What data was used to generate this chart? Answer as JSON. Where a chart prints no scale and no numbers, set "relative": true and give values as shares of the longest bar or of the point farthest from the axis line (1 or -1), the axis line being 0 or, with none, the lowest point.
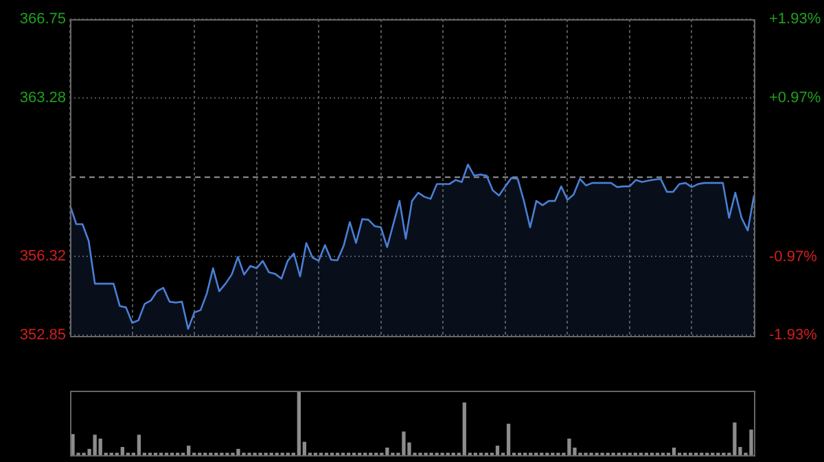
{
  "chart_data": [
    {
      "type": "area",
      "categories": [
        null,
        null,
        null,
        null,
        null,
        null,
        null,
        null,
        null,
        null,
        null,
        null,
        null,
        null,
        null,
        null,
        null,
        null,
        null,
        null,
        null,
        null,
        null,
        null,
        null,
        null,
        null,
        null,
        null,
        null,
        null,
        null,
        null,
        null,
        null,
        null,
        null,
        null,
        null,
        null,
        null,
        null,
        null,
        null,
        null,
        null,
        null,
        null,
        null,
        null,
        null,
        null,
        null,
        null,
        null,
        null,
        null,
        null,
        null,
        null,
        null,
        null,
        null,
        null,
        null,
        null,
        null,
        null,
        null,
        null,
        null,
        null,
        null,
        null,
        null,
        null,
        null,
        null,
        null,
        null,
        null,
        null,
        null,
        null,
        null,
        null,
        null,
        null,
        null,
        null,
        null,
        null,
        null,
        null,
        null,
        null,
        null,
        null,
        null,
        null,
        null,
        null,
        null,
        null,
        null,
        null,
        null,
        null,
        null,
        null,
        null
      ],
      "series": [
        {
          "color": "#4a7fd6",
          "values": [
            358.57,
            357.74,
            357.74,
            357.0,
            355.12,
            355.12,
            355.12,
            355.12,
            354.14,
            354.08,
            353.4,
            353.51,
            354.23,
            354.38,
            354.79,
            354.94,
            354.33,
            354.29,
            354.33,
            353.13,
            353.86,
            353.96,
            354.69,
            355.8,
            354.79,
            355.12,
            355.52,
            356.3,
            355.52,
            355.9,
            355.8,
            356.12,
            355.62,
            355.55,
            355.34,
            356.12,
            356.45,
            355.44,
            356.91,
            356.27,
            356.13,
            356.82,
            356.17,
            356.15,
            356.78,
            357.83,
            356.91,
            357.96,
            357.93,
            357.65,
            357.6,
            356.73,
            357.74,
            358.76,
            357.1,
            358.76,
            359.12,
            358.94,
            358.85,
            359.5,
            359.5,
            359.5,
            359.68,
            359.59,
            360.36,
            359.87,
            359.92,
            359.87,
            359.22,
            359.0,
            359.4,
            359.77,
            359.73,
            358.76,
            357.6,
            358.76,
            358.57,
            358.76,
            358.76,
            359.4,
            358.81,
            359.04,
            359.73,
            359.44,
            359.55,
            359.55,
            359.55,
            359.55,
            359.37,
            359.4,
            359.4,
            359.68,
            359.59,
            359.65,
            359.7,
            359.73,
            359.16,
            359.16,
            359.5,
            359.55,
            359.37,
            359.5,
            359.55,
            359.55,
            359.55,
            359.55,
            358.02,
            359.12,
            358.02,
            357.46,
            358.98
          ]
        }
      ],
      "ylim": [
        352.85,
        366.75
      ],
      "yticks": [
        352.85,
        356.32,
        363.28,
        366.75
      ],
      "y2lim": [
        -1.93,
        1.93
      ],
      "y2ticks": [
        {
          "value": -1.93,
          "label": "-1.93%"
        },
        {
          "value": -0.97,
          "label": "-0.97%"
        },
        {
          "value": 0.97,
          "label": "+0.97%"
        },
        {
          "value": 1.93,
          "label": "+1.93%"
        }
      ],
      "ref_lines": [
        {
          "axis": "y",
          "value": 359.8,
          "color": "#9a9a9a",
          "line_style": "dashed"
        }
      ],
      "grid": true,
      "legend": false
    },
    {
      "type": "bar",
      "relative": true,
      "color": "#8c8c8c",
      "legend": false,
      "categories": [
        null,
        null,
        null,
        null,
        null,
        null,
        null,
        null,
        null,
        null,
        null,
        null,
        null,
        null,
        null,
        null,
        null,
        null,
        null,
        null,
        null,
        null,
        null,
        null,
        null,
        null,
        null,
        null,
        null,
        null,
        null,
        null,
        null,
        null,
        null,
        null,
        null,
        null,
        null,
        null,
        null,
        null,
        null,
        null,
        null,
        null,
        null,
        null,
        null,
        null,
        null,
        null,
        null,
        null,
        null,
        null,
        null,
        null,
        null,
        null,
        null,
        null,
        null,
        null,
        null,
        null,
        null,
        null,
        null,
        null,
        null,
        null,
        null,
        null,
        null,
        null,
        null,
        null,
        null,
        null,
        null,
        null,
        null,
        null,
        null,
        null,
        null,
        null,
        null,
        null,
        null,
        null,
        null,
        null,
        null,
        null,
        null,
        null,
        null,
        null,
        null,
        null,
        null,
        null,
        null,
        null,
        null,
        null,
        null,
        null,
        null,
        null,
        null,
        null,
        null,
        null,
        null,
        null,
        null,
        null,
        null,
        null,
        null,
        null
      ],
      "values": [
        0.32,
        0.03,
        0.03,
        0.09,
        0.31,
        0.25,
        0.03,
        0.03,
        0.03,
        0.12,
        0.03,
        0.03,
        0.31,
        0.03,
        0.03,
        0.03,
        0.03,
        0.03,
        0.03,
        0.03,
        0.03,
        0.14,
        0.03,
        0.03,
        0.03,
        0.03,
        0.03,
        0.03,
        0.03,
        0.03,
        0.09,
        0.03,
        0.03,
        0.03,
        0.03,
        0.03,
        0.03,
        0.03,
        0.03,
        0.03,
        0.03,
        1,
        0.2,
        0.03,
        0.03,
        0.03,
        0.03,
        0.03,
        0.03,
        0.03,
        0.03,
        0.03,
        0.03,
        0.03,
        0.03,
        0.03,
        0.03,
        0.11,
        0.03,
        0.03,
        0.36,
        0.19,
        0.03,
        0.03,
        0.03,
        0.03,
        0.03,
        0.03,
        0.03,
        0.03,
        0.03,
        0.81,
        0.03,
        0.03,
        0.03,
        0.03,
        0.03,
        0.14,
        0.03,
        0.48,
        0.03,
        0.03,
        0.03,
        0.03,
        0.03,
        0.03,
        0.03,
        0.03,
        0.03,
        0.03,
        0.25,
        0.11,
        0.03,
        0.03,
        0.03,
        0.03,
        0.03,
        0.03,
        0.03,
        0.03,
        0.03,
        0.03,
        0.03,
        0.03,
        0.03,
        0.03,
        0.03,
        0.03,
        0.03,
        0.11,
        0.03,
        0.03,
        0.03,
        0.03,
        0.03,
        0.03,
        0.03,
        0.03,
        0.03,
        0.03,
        0.5,
        0.12,
        0.03,
        0.39
      ]
    }
  ]
}
